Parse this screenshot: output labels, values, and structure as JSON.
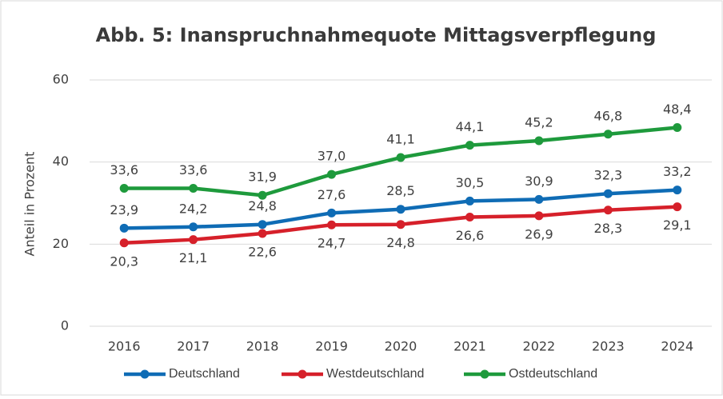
{
  "chart_data": {
    "type": "line",
    "title": "Abb. 5: Inanspruchnahmequote Mittagsverpflegung",
    "y_label": "Anteil in Prozent",
    "categories": [
      "2016",
      "2017",
      "2018",
      "2019",
      "2020",
      "2021",
      "2022",
      "2023",
      "2024"
    ],
    "series": [
      {
        "name": "Deutschland",
        "color": "#0f6cb5",
        "values": [
          23.9,
          24.2,
          24.8,
          27.6,
          28.5,
          30.5,
          30.9,
          32.3,
          33.2
        ],
        "value_labels": [
          "23,9",
          "24,2",
          "24,8",
          "27,6",
          "28,5",
          "30,5",
          "30,9",
          "32,3",
          "33,2"
        ]
      },
      {
        "name": "Westdeutschland",
        "color": "#d6202a",
        "values": [
          20.3,
          21.1,
          22.6,
          24.7,
          24.8,
          26.6,
          26.9,
          28.3,
          29.1
        ],
        "value_labels": [
          "20,3",
          "21,1",
          "22,6",
          "24,7",
          "24,8",
          "26,6",
          "26,9",
          "28,3",
          "29,1"
        ]
      },
      {
        "name": "Ostdeutschland",
        "color": "#1e9a3c",
        "values": [
          33.6,
          33.6,
          31.9,
          37.0,
          41.1,
          44.1,
          45.2,
          46.8,
          48.4
        ],
        "value_labels": [
          "33,6",
          "33,6",
          "31,9",
          "37,0",
          "41,1",
          "44,1",
          "45,2",
          "46,8",
          "48,4"
        ]
      }
    ],
    "ylim": [
      0,
      60
    ],
    "yticks": [
      0,
      20,
      40,
      60
    ],
    "grid": true,
    "legend": "bottom"
  }
}
